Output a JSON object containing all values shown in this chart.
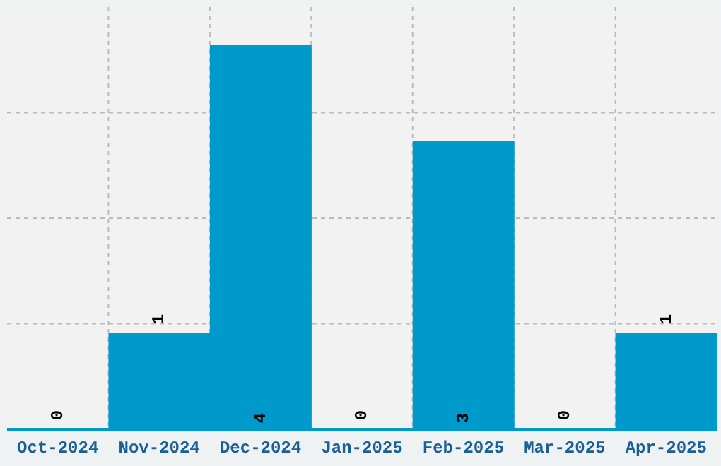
{
  "chart_data": {
    "type": "bar",
    "categories": [
      "Oct-2024",
      "Nov-2024",
      "Dec-2024",
      "Jan-2025",
      "Feb-2025",
      "Mar-2025",
      "Apr-2025"
    ],
    "values": [
      0,
      1,
      4,
      0,
      3,
      0,
      1
    ],
    "color": "#0099cc",
    "tick_labels": "x",
    "grid": true,
    "data_labels": true
  }
}
